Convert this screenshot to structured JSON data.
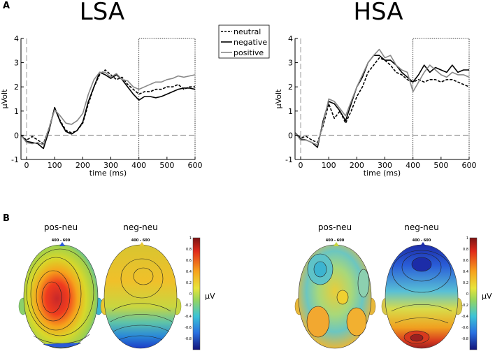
{
  "panel_a_label": "A",
  "panel_b_label": "B",
  "chart_data": [
    {
      "type": "line",
      "title": "LSA",
      "xlabel": "time (ms)",
      "ylabel": "µVolt",
      "xlim": [
        -20,
        600
      ],
      "ylim": [
        -1,
        4
      ],
      "xticks": [
        "0",
        "100",
        "200",
        "300",
        "400",
        "500",
        "600"
      ],
      "yticks": [
        "-1",
        "0",
        "1",
        "2",
        "3",
        "4"
      ],
      "window": [
        400,
        600
      ],
      "series": [
        {
          "name": "neutral",
          "style": "dashed",
          "color": "#000000",
          "x": [
            -20,
            0,
            20,
            40,
            60,
            80,
            100,
            120,
            140,
            160,
            180,
            200,
            220,
            240,
            260,
            280,
            300,
            320,
            340,
            360,
            380,
            400,
            420,
            440,
            460,
            480,
            500,
            520,
            540,
            560,
            580,
            600
          ],
          "y": [
            0,
            -0.2,
            -0.05,
            -0.2,
            -0.35,
            0.3,
            1.1,
            0.6,
            0.2,
            0.1,
            0.2,
            0.5,
            1.3,
            2.0,
            2.5,
            2.7,
            2.5,
            2.3,
            2.4,
            2.1,
            1.9,
            1.7,
            1.8,
            1.8,
            1.9,
            1.9,
            2.0,
            2.0,
            2.1,
            1.9,
            2.0,
            2.0
          ]
        },
        {
          "name": "negative",
          "style": "solid",
          "color": "#000000",
          "x": [
            -20,
            0,
            20,
            40,
            60,
            80,
            100,
            120,
            140,
            160,
            180,
            200,
            220,
            240,
            260,
            280,
            300,
            320,
            340,
            360,
            380,
            400,
            420,
            440,
            460,
            480,
            500,
            520,
            540,
            560,
            580,
            600
          ],
          "y": [
            0,
            -0.25,
            -0.3,
            -0.35,
            -0.55,
            0.2,
            1.15,
            0.55,
            0.15,
            0.05,
            0.2,
            0.55,
            1.4,
            2.0,
            2.6,
            2.5,
            2.35,
            2.5,
            2.3,
            2.0,
            1.7,
            1.45,
            1.6,
            1.6,
            1.55,
            1.6,
            1.7,
            1.8,
            1.9,
            1.95,
            1.95,
            1.9
          ]
        },
        {
          "name": "positive",
          "style": "solid",
          "color": "#888888",
          "x": [
            -20,
            0,
            20,
            40,
            60,
            80,
            100,
            120,
            140,
            160,
            180,
            200,
            220,
            240,
            260,
            280,
            300,
            320,
            340,
            360,
            380,
            400,
            420,
            440,
            460,
            480,
            500,
            520,
            540,
            560,
            580,
            600
          ],
          "y": [
            0,
            -0.3,
            -0.35,
            -0.3,
            -0.4,
            0.3,
            1.05,
            0.8,
            0.5,
            0.45,
            0.6,
            0.9,
            1.7,
            2.3,
            2.6,
            2.6,
            2.4,
            2.55,
            2.3,
            2.25,
            2.0,
            1.9,
            2.0,
            2.1,
            2.2,
            2.2,
            2.3,
            2.35,
            2.45,
            2.4,
            2.45,
            2.5
          ]
        }
      ]
    },
    {
      "type": "line",
      "title": "HSA",
      "xlabel": "time (ms)",
      "ylabel": "µVolt",
      "xlim": [
        -20,
        600
      ],
      "ylim": [
        -1,
        4
      ],
      "xticks": [
        "0",
        "100",
        "200",
        "300",
        "400",
        "500",
        "600"
      ],
      "yticks": [
        "-1",
        "0",
        "1",
        "2",
        "3",
        "4"
      ],
      "window": [
        400,
        600
      ],
      "series": [
        {
          "name": "neutral",
          "style": "dashed",
          "color": "#000000",
          "x": [
            -20,
            0,
            20,
            40,
            60,
            80,
            100,
            120,
            140,
            160,
            180,
            200,
            220,
            240,
            260,
            280,
            300,
            320,
            340,
            360,
            380,
            400,
            420,
            440,
            460,
            480,
            500,
            520,
            540,
            560,
            580,
            600
          ],
          "y": [
            0.1,
            -0.1,
            -0.05,
            -0.2,
            -0.3,
            0.4,
            1.3,
            0.7,
            1.0,
            0.5,
            1.0,
            1.6,
            2.0,
            2.6,
            2.9,
            3.2,
            3.1,
            2.9,
            2.6,
            2.5,
            2.3,
            2.2,
            2.3,
            2.2,
            2.3,
            2.3,
            2.2,
            2.3,
            2.3,
            2.2,
            2.1,
            2.0
          ]
        },
        {
          "name": "negative",
          "style": "solid",
          "color": "#000000",
          "x": [
            -20,
            0,
            20,
            40,
            60,
            80,
            100,
            120,
            140,
            160,
            180,
            200,
            220,
            240,
            260,
            280,
            300,
            320,
            340,
            360,
            380,
            400,
            420,
            440,
            460,
            480,
            500,
            520,
            540,
            560,
            580,
            600
          ],
          "y": [
            0.1,
            -0.15,
            -0.2,
            -0.3,
            -0.5,
            0.6,
            1.4,
            1.3,
            1.0,
            0.6,
            1.3,
            2.0,
            2.4,
            3.0,
            3.3,
            3.3,
            3.1,
            3.1,
            2.9,
            2.6,
            2.4,
            2.2,
            2.5,
            2.9,
            2.6,
            2.8,
            2.7,
            2.6,
            2.9,
            2.6,
            2.7,
            2.7
          ]
        },
        {
          "name": "positive",
          "style": "solid",
          "color": "#888888",
          "x": [
            -20,
            0,
            20,
            40,
            60,
            80,
            100,
            120,
            140,
            160,
            180,
            200,
            220,
            240,
            260,
            280,
            300,
            320,
            340,
            360,
            380,
            400,
            420,
            440,
            460,
            480,
            500,
            520,
            540,
            560,
            580,
            600
          ],
          "y": [
            0.1,
            -0.2,
            -0.2,
            -0.3,
            -0.4,
            0.5,
            1.5,
            1.4,
            1.1,
            0.8,
            1.4,
            2.0,
            2.5,
            3.0,
            3.3,
            3.55,
            3.2,
            3.3,
            2.9,
            2.7,
            2.6,
            1.8,
            2.2,
            2.6,
            2.9,
            2.7,
            2.5,
            2.4,
            2.6,
            2.5,
            2.5,
            2.4
          ]
        }
      ]
    }
  ],
  "legend": {
    "entries": [
      "neutral",
      "negative",
      "positive"
    ]
  },
  "topomaps": {
    "colorbar_ticks": [
      "1",
      "0.8",
      "0.6",
      "0.4",
      "0.2",
      "0",
      "-0.2",
      "-0.4",
      "-0.6",
      "-0.8"
    ],
    "colorbar_range": [
      -1,
      1
    ],
    "unit": "µV",
    "range_label": "400 - 600",
    "maps": [
      {
        "group": "LSA",
        "label": "pos-neu",
        "peak_value": 1.0,
        "trough_value": -0.8
      },
      {
        "group": "LSA",
        "label": "neg-neu",
        "peak_value": 0.4,
        "trough_value": -0.8
      },
      {
        "group": "HSA",
        "label": "pos-neu",
        "peak_value": 0.4,
        "trough_value": -0.2
      },
      {
        "group": "HSA",
        "label": "neg-neu",
        "peak_value": 1.0,
        "trough_value": -1.0
      }
    ]
  }
}
